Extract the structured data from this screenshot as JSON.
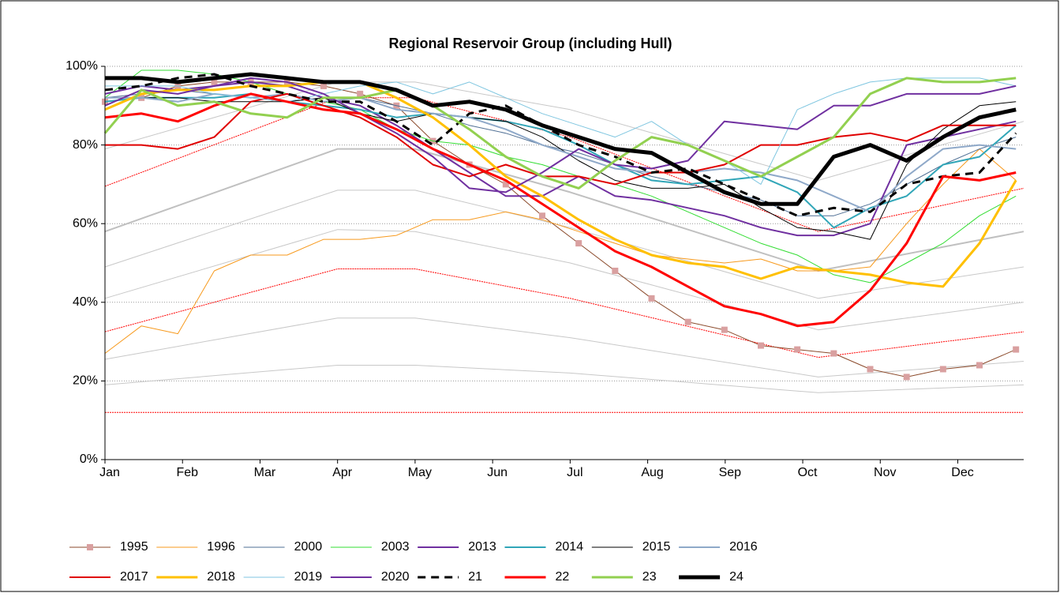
{
  "chart_data": {
    "type": "line",
    "title": "Regional Reservoir Group (including Hull)",
    "x": [
      1.0,
      1.47,
      1.94,
      2.41,
      2.88,
      3.35,
      3.82,
      4.29,
      4.76,
      5.23,
      5.7,
      6.17,
      6.64,
      7.11,
      7.58,
      8.05,
      8.52,
      8.99,
      9.46,
      9.93,
      10.4,
      10.87,
      11.34,
      11.81,
      12.28,
      12.75
    ],
    "xlim": [
      1,
      12.85
    ],
    "xticks": [
      {
        "value": 1,
        "label": "Jan"
      },
      {
        "value": 2,
        "label": "Feb"
      },
      {
        "value": 3,
        "label": "Mar"
      },
      {
        "value": 4,
        "label": "Apr"
      },
      {
        "value": 5,
        "label": "May"
      },
      {
        "value": 6,
        "label": "Jun"
      },
      {
        "value": 7,
        "label": "Jul"
      },
      {
        "value": 8,
        "label": "Aug"
      },
      {
        "value": 9,
        "label": "Sep"
      },
      {
        "value": 10,
        "label": "Oct"
      },
      {
        "value": 11,
        "label": "Nov"
      },
      {
        "value": 12,
        "label": "Dec"
      }
    ],
    "ylim": [
      0,
      100
    ],
    "yticks": [
      {
        "value": 0,
        "label": "0%"
      },
      {
        "value": 20,
        "label": "20%"
      },
      {
        "value": 40,
        "label": "40%"
      },
      {
        "value": 60,
        "label": "60%"
      },
      {
        "value": 80,
        "label": "80%"
      },
      {
        "value": 100,
        "label": "100%"
      }
    ],
    "grid": true,
    "legend": "bottom",
    "reference_lines": [
      {
        "color": "#c8c8c8",
        "style": "thin",
        "x": [
          1,
          4,
          5,
          7,
          10.2,
          12.85
        ],
        "values": [
          79,
          96,
          96,
          89,
          71,
          86
        ]
      },
      {
        "color": "#c0c0c0",
        "style": "medium",
        "x": [
          1,
          4,
          5,
          7,
          10.2,
          12.85
        ],
        "values": [
          58,
          79,
          79,
          68,
          48,
          58
        ]
      },
      {
        "color": "#c8c8c8",
        "style": "thin",
        "x": [
          1,
          4,
          5,
          7,
          10.2,
          12.85
        ],
        "values": [
          49,
          68.5,
          68.5,
          59,
          41,
          49
        ]
      },
      {
        "color": "#c8c8c8",
        "style": "thin",
        "x": [
          1,
          4,
          5,
          7,
          10.2,
          12.85
        ],
        "values": [
          41,
          58.5,
          58,
          50,
          33,
          40
        ]
      },
      {
        "color": "#c8c8c8",
        "style": "thin",
        "x": [
          1,
          4,
          5,
          7,
          10.2,
          12.85
        ],
        "values": [
          25.5,
          36,
          36,
          31,
          21,
          25
        ]
      },
      {
        "color": "#c8c8c8",
        "style": "thin",
        "x": [
          1,
          4,
          5,
          7,
          10.2,
          12.85
        ],
        "values": [
          19,
          24,
          24,
          22,
          17,
          19
        ]
      },
      {
        "color": "#ff0000",
        "style": "dotted",
        "x": [
          1,
          4,
          5,
          7,
          10.2,
          12.85
        ],
        "values": [
          69.5,
          92,
          92,
          82,
          58,
          69
        ]
      },
      {
        "color": "#ff0000",
        "style": "dotted",
        "x": [
          1,
          4,
          5,
          7,
          10.2,
          12.85
        ],
        "values": [
          32.5,
          48.5,
          48.5,
          41,
          26,
          32.5
        ]
      },
      {
        "color": "#ff0000",
        "style": "dotted",
        "x": [
          1,
          12.85
        ],
        "values": [
          12,
          12
        ]
      }
    ],
    "series": [
      {
        "name": "1995",
        "color": "#8b4a2b",
        "marker_color": "#d9a0a0",
        "marker": "square",
        "style": "thin",
        "values": [
          91,
          92,
          95,
          96,
          96,
          96,
          95,
          93,
          90,
          81,
          75,
          70,
          62,
          55,
          48,
          41,
          35,
          33,
          29,
          28,
          27,
          23,
          21,
          23,
          24,
          28
        ]
      },
      {
        "name": "1996",
        "color": "#f79a1e",
        "style": "thin",
        "values": [
          27,
          34,
          32,
          48,
          52,
          52,
          56,
          56,
          57,
          61,
          61,
          63,
          61,
          58,
          55,
          52,
          51,
          50,
          51,
          48,
          48,
          49,
          60,
          70,
          79,
          71
        ]
      },
      {
        "name": "2000",
        "color": "#4f6f94",
        "style": "thin",
        "values": [
          92,
          93,
          94,
          93,
          92,
          91,
          92,
          92,
          90,
          88,
          85,
          83,
          80,
          78,
          75,
          72,
          70,
          68,
          66,
          62,
          62,
          65,
          70,
          75,
          79,
          82
        ]
      },
      {
        "name": "2003",
        "color": "#33dd33",
        "style": "thin",
        "values": [
          92,
          99,
          99,
          98,
          96,
          93,
          91,
          89,
          84,
          81,
          80,
          77,
          75,
          72,
          70,
          67,
          63,
          59,
          55,
          52,
          47,
          45,
          50,
          55,
          62,
          67
        ]
      },
      {
        "name": "2013",
        "color": "#7030a0",
        "style": "medium",
        "values": [
          93,
          95,
          94,
          95,
          96,
          95,
          92,
          90,
          85,
          79,
          73,
          67,
          67,
          72,
          67,
          66,
          64,
          62,
          59,
          57,
          57,
          60,
          80,
          82,
          84,
          86
        ]
      },
      {
        "name": "2014",
        "color": "#31a6b8",
        "style": "medium",
        "values": [
          91,
          92,
          92,
          92,
          93,
          91,
          90,
          89,
          87,
          88,
          87,
          86,
          84,
          80,
          75,
          71,
          70,
          71,
          72,
          68,
          59,
          64,
          67,
          75,
          77,
          85
        ]
      },
      {
        "name": "2015",
        "color": "#000000",
        "style": "thin",
        "values": [
          92,
          92,
          92,
          91,
          91,
          91,
          92,
          88,
          86,
          88,
          87,
          86,
          82,
          76,
          71,
          69,
          69,
          70,
          64,
          59,
          58,
          56,
          75,
          84,
          90,
          91
        ]
      },
      {
        "name": "2016",
        "color": "#8fa9c9",
        "style": "medium",
        "values": [
          92,
          92,
          91,
          93,
          92,
          93,
          91,
          92,
          89,
          88,
          87,
          84,
          80,
          77,
          74,
          73,
          73,
          74,
          73,
          71,
          67,
          63,
          72,
          79,
          80,
          79
        ]
      },
      {
        "name": "2017",
        "color": "#e00000",
        "style": "medium",
        "values": [
          80,
          80,
          79,
          82,
          91,
          93,
          90,
          87,
          82,
          75,
          72,
          75,
          72,
          72,
          70,
          73,
          73,
          75,
          80,
          80,
          82,
          83,
          81,
          85,
          85,
          85
        ]
      },
      {
        "name": "2018",
        "color": "#ffc000",
        "style": "thick",
        "values": [
          89,
          93,
          94,
          94,
          95,
          95,
          96,
          96,
          92,
          87,
          80,
          72,
          67,
          61,
          56,
          52,
          50,
          49,
          46,
          49,
          48,
          47,
          45,
          44,
          55,
          71
        ]
      },
      {
        "name": "2019",
        "color": "#7fc6e0",
        "style": "thin",
        "values": [
          95,
          95,
          95,
          93,
          92,
          91,
          93,
          95,
          96,
          93,
          96,
          92,
          88,
          85,
          82,
          86,
          80,
          76,
          70,
          89,
          93,
          96,
          97,
          97,
          97,
          95
        ]
      },
      {
        "name": "2020",
        "color": "#7030a0",
        "style": "medium",
        "values": [
          90,
          94,
          93,
          95,
          97,
          96,
          93,
          88,
          83,
          77,
          69,
          68,
          73,
          79,
          75,
          74,
          76,
          86,
          85,
          84,
          90,
          90,
          93,
          93,
          93,
          95
        ]
      },
      {
        "name": "21",
        "color": "#000000",
        "style": "dashed",
        "values": [
          94,
          95,
          97,
          98,
          95,
          93,
          91,
          91,
          86,
          80,
          88,
          90,
          85,
          80,
          77,
          73,
          74,
          70,
          66,
          62,
          64,
          63,
          70,
          72,
          73,
          83
        ]
      },
      {
        "name": "22",
        "color": "#ff0000",
        "style": "thick",
        "values": [
          87,
          88,
          86,
          90,
          93,
          91,
          89,
          88,
          84,
          79,
          75,
          71,
          65,
          59,
          53,
          49,
          44,
          39,
          37,
          34,
          35,
          43,
          55,
          72,
          71,
          73
        ]
      },
      {
        "name": "23",
        "color": "#92d050",
        "style": "thick",
        "values": [
          83,
          94,
          90,
          91,
          88,
          87,
          92,
          92,
          94,
          90,
          84,
          77,
          72,
          69,
          76,
          82,
          80,
          76,
          72,
          77,
          82,
          93,
          97,
          96,
          96,
          97
        ]
      },
      {
        "name": "24",
        "color": "#000000",
        "style": "heavy",
        "values": [
          97,
          97,
          96,
          97,
          98,
          97,
          96,
          96,
          94,
          90,
          91,
          89,
          85,
          82,
          79,
          78,
          73,
          68,
          65,
          65,
          77,
          80,
          76,
          82,
          87,
          89
        ]
      }
    ]
  }
}
